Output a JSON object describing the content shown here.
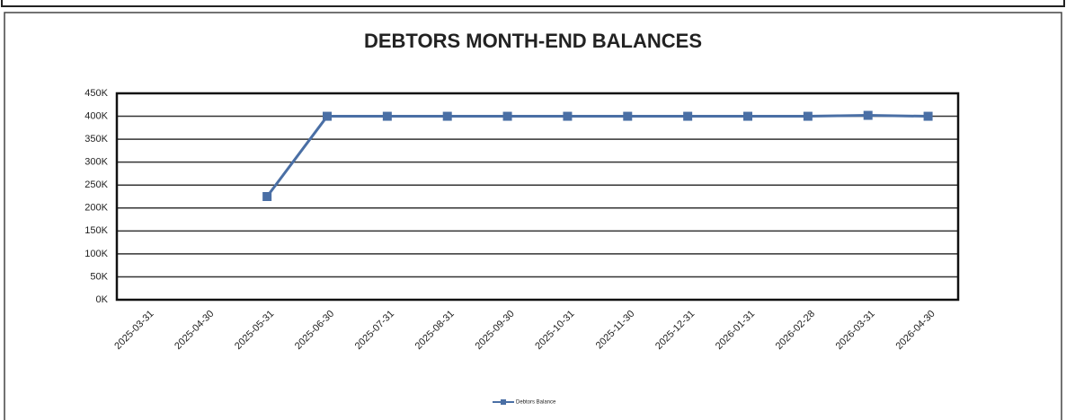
{
  "chart_data": {
    "type": "line",
    "title": "DEBTORS MONTH-END BALANCES",
    "categories": [
      "2025-03-31",
      "2025-04-30",
      "2025-05-31",
      "2025-06-30",
      "2025-07-31",
      "2025-08-31",
      "2025-09-30",
      "2025-10-31",
      "2025-11-30",
      "2025-12-31",
      "2026-01-31",
      "2026-02-28",
      "2026-03-31",
      "2026-04-30"
    ],
    "series": [
      {
        "name": "Debtors Balance",
        "color": "#4a6fa5",
        "values": [
          null,
          null,
          225000,
          400000,
          400000,
          400000,
          400000,
          400000,
          400000,
          400000,
          400000,
          400000,
          402000,
          400000
        ]
      }
    ],
    "ylim": [
      0,
      450000
    ],
    "yticks": [
      {
        "value": 0,
        "label": "0K"
      },
      {
        "value": 50000,
        "label": "50K"
      },
      {
        "value": 100000,
        "label": "100K"
      },
      {
        "value": 150000,
        "label": "150K"
      },
      {
        "value": 200000,
        "label": "200K"
      },
      {
        "value": 250000,
        "label": "250K"
      },
      {
        "value": 300000,
        "label": "300K"
      },
      {
        "value": 350000,
        "label": "350K"
      },
      {
        "value": 400000,
        "label": "400K"
      },
      {
        "value": 450000,
        "label": "450K"
      }
    ],
    "grid": true,
    "legend": "bottom"
  }
}
